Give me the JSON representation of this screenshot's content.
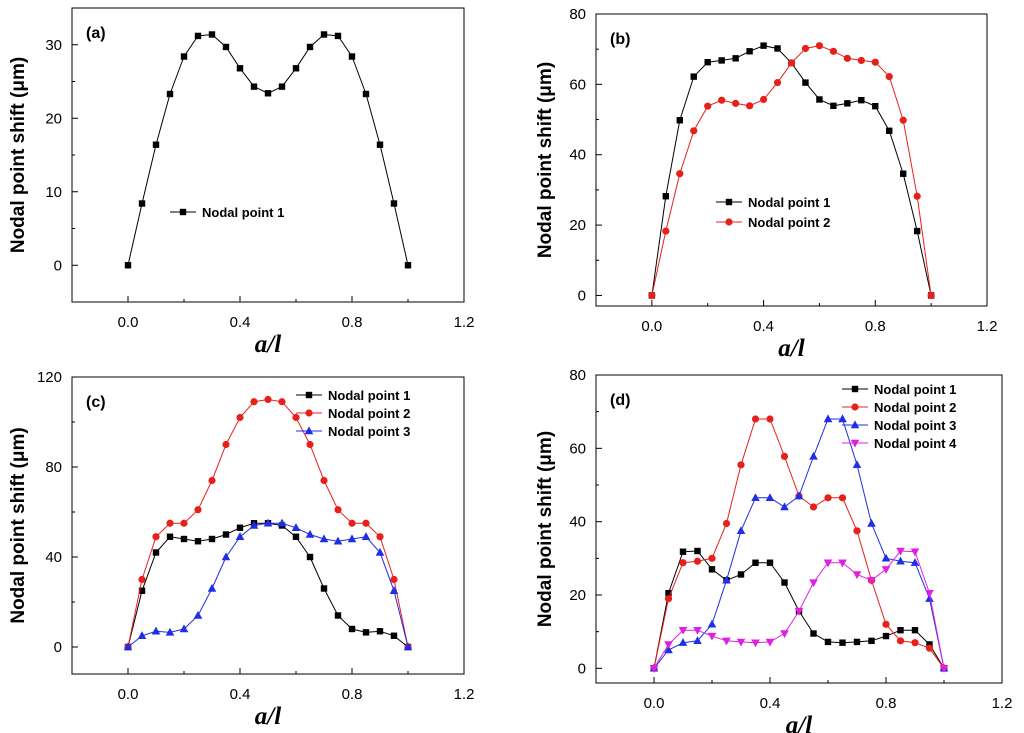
{
  "chart_data": [
    {
      "type": "line",
      "panel_label": "(a)",
      "ylabel": "Nodal point shift (μm)",
      "xlabel": "a/l",
      "xlim": [
        -0.2,
        1.2
      ],
      "ylim": [
        -5,
        35
      ],
      "xticks": [
        0.0,
        0.4,
        0.8,
        1.2
      ],
      "xtick_labels": [
        "0.0",
        "0.4",
        "0.8",
        "1.2"
      ],
      "yticks": [
        0,
        10,
        20,
        30
      ],
      "ytick_labels": [
        "0",
        "10",
        "20",
        "30"
      ],
      "legend_position": "center",
      "x": [
        0,
        0.05,
        0.1,
        0.15,
        0.2,
        0.25,
        0.3,
        0.35,
        0.4,
        0.45,
        0.5,
        0.55,
        0.6,
        0.65,
        0.7,
        0.75,
        0.8,
        0.85,
        0.9,
        0.95,
        1.0
      ],
      "series": [
        {
          "name": "Nodal point 1",
          "color": "#000000",
          "marker": "square",
          "values": [
            0,
            8.4,
            16.4,
            23.3,
            28.4,
            31.2,
            31.4,
            29.7,
            26.8,
            24.3,
            23.4,
            24.3,
            26.8,
            29.7,
            31.4,
            31.2,
            28.4,
            23.3,
            16.4,
            8.4,
            0
          ]
        }
      ]
    },
    {
      "type": "line",
      "panel_label": "(b)",
      "ylabel": "Nodal point shift (μm)",
      "xlabel": "a/l",
      "xlim": [
        -0.2,
        1.2
      ],
      "ylim": [
        -3,
        80
      ],
      "xticks": [
        0.0,
        0.4,
        0.8,
        1.2
      ],
      "xtick_labels": [
        "0.0",
        "0.4",
        "0.8",
        "1.2"
      ],
      "yticks": [
        0,
        20,
        40,
        60,
        80
      ],
      "ytick_labels": [
        "0",
        "20",
        "40",
        "60",
        "80"
      ],
      "legend_position": "lower-center",
      "x": [
        0,
        0.05,
        0.1,
        0.15,
        0.2,
        0.25,
        0.3,
        0.35,
        0.4,
        0.45,
        0.5,
        0.55,
        0.6,
        0.65,
        0.7,
        0.75,
        0.8,
        0.85,
        0.9,
        0.95,
        1.0
      ],
      "series": [
        {
          "name": "Nodal point 1",
          "color": "#000000",
          "marker": "square",
          "values": [
            0,
            28.2,
            49.8,
            62.2,
            66.3,
            66.8,
            67.4,
            69.4,
            71.0,
            70.2,
            66.1,
            60.5,
            55.7,
            53.9,
            54.6,
            55.5,
            53.8,
            46.8,
            34.6,
            18.3,
            0
          ]
        },
        {
          "name": "Nodal point 2",
          "color": "#e8201c",
          "marker": "circle",
          "values": [
            0,
            18.3,
            34.6,
            46.8,
            53.8,
            55.5,
            54.6,
            53.9,
            55.7,
            60.5,
            66.1,
            70.2,
            71.0,
            69.4,
            67.4,
            66.8,
            66.3,
            62.2,
            49.8,
            28.2,
            0
          ]
        }
      ]
    },
    {
      "type": "line",
      "panel_label": "(c)",
      "ylabel": "Nodal point shift (μm)",
      "xlabel": "a/l",
      "xlim": [
        -0.2,
        1.2
      ],
      "ylim": [
        -12,
        120
      ],
      "xticks": [
        0.0,
        0.4,
        0.8,
        1.2
      ],
      "xtick_labels": [
        "0.0",
        "0.4",
        "0.8",
        "1.2"
      ],
      "yticks": [
        0,
        40,
        80,
        120
      ],
      "ytick_labels": [
        "0",
        "40",
        "80",
        "120"
      ],
      "legend_position": "top-right",
      "x": [
        0,
        0.05,
        0.1,
        0.15,
        0.2,
        0.25,
        0.3,
        0.35,
        0.4,
        0.45,
        0.5,
        0.55,
        0.6,
        0.65,
        0.7,
        0.75,
        0.8,
        0.85,
        0.9,
        0.95,
        1.0
      ],
      "series": [
        {
          "name": "Nodal point 1",
          "color": "#000000",
          "marker": "square",
          "values": [
            0,
            25,
            42,
            49,
            48,
            47,
            48,
            50,
            53,
            55,
            55,
            54,
            49,
            40,
            26,
            14,
            8,
            6.5,
            7,
            5,
            0
          ]
        },
        {
          "name": "Nodal point 2",
          "color": "#e8201c",
          "marker": "circle",
          "values": [
            0,
            30,
            49,
            55,
            55,
            61,
            74,
            90,
            102,
            109,
            110,
            109,
            102,
            90,
            74,
            61,
            55,
            55,
            49,
            30,
            0
          ]
        },
        {
          "name": "Nodal point 3",
          "color": "#1f2fe6",
          "marker": "triangle-up",
          "values": [
            0,
            5,
            7,
            6.5,
            8,
            14,
            26,
            40,
            49,
            54,
            55,
            55,
            53,
            50,
            48,
            47,
            48,
            49,
            42,
            25,
            0
          ]
        }
      ]
    },
    {
      "type": "line",
      "panel_label": "(d)",
      "ylabel": "Nodal point shift (μm)",
      "xlabel": "a/l",
      "xlim": [
        -0.2,
        1.2
      ],
      "ylim": [
        -4,
        80
      ],
      "xticks": [
        0.0,
        0.4,
        0.8,
        1.2
      ],
      "xtick_labels": [
        "0.0",
        "0.4",
        "0.8",
        "1.2"
      ],
      "yticks": [
        0,
        20,
        40,
        60,
        80
      ],
      "ytick_labels": [
        "0",
        "20",
        "40",
        "60",
        "80"
      ],
      "legend_position": "top-right",
      "x": [
        0,
        0.05,
        0.1,
        0.15,
        0.2,
        0.25,
        0.3,
        0.35,
        0.4,
        0.45,
        0.5,
        0.55,
        0.6,
        0.65,
        0.7,
        0.75,
        0.8,
        0.85,
        0.9,
        0.95,
        1.0
      ],
      "series": [
        {
          "name": "Nodal point 1",
          "color": "#000000",
          "marker": "square",
          "values": [
            0,
            20.5,
            31.8,
            32.0,
            27.0,
            24.0,
            25.6,
            28.8,
            28.8,
            23.4,
            15.6,
            9.5,
            7.2,
            7.0,
            7.2,
            7.5,
            8.8,
            10.4,
            10.4,
            6.5,
            0
          ]
        },
        {
          "name": "Nodal point 2",
          "color": "#e8201c",
          "marker": "circle",
          "values": [
            0,
            19.0,
            28.8,
            29.2,
            30.0,
            39.5,
            55.5,
            68.0,
            68.0,
            57.8,
            47.0,
            44.0,
            46.5,
            46.5,
            37.5,
            24.0,
            12.0,
            7.5,
            7.0,
            5.5,
            0
          ]
        },
        {
          "name": "Nodal point 3",
          "color": "#1f2fe6",
          "marker": "triangle-up",
          "values": [
            0,
            5.0,
            7.0,
            7.5,
            12.0,
            24.0,
            37.5,
            46.5,
            46.5,
            44.0,
            47.0,
            57.8,
            68.0,
            68.0,
            55.5,
            39.5,
            30.0,
            29.2,
            28.8,
            19.0,
            0
          ]
        },
        {
          "name": "Nodal point 4",
          "color": "#e020e0",
          "marker": "triangle-down",
          "values": [
            0,
            6.5,
            10.4,
            10.4,
            8.8,
            7.5,
            7.2,
            7.0,
            7.2,
            9.5,
            15.6,
            23.4,
            28.8,
            28.8,
            25.6,
            24.0,
            27.0,
            32.0,
            31.8,
            20.5,
            0
          ]
        }
      ]
    }
  ]
}
